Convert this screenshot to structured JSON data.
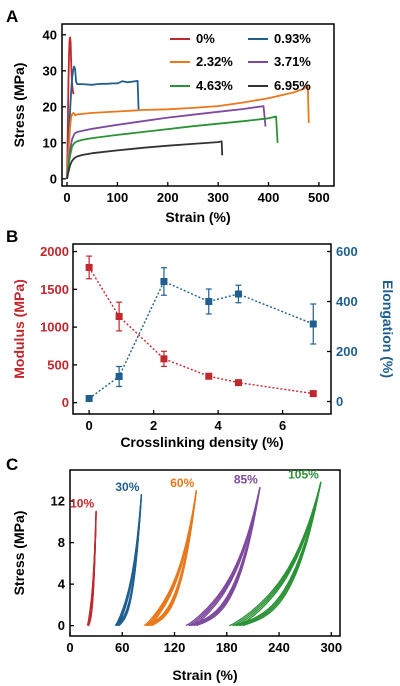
{
  "chart_data": [
    {
      "panel": "A",
      "type": "line",
      "xlabel": "Strain (%)",
      "ylabel": "Stress (MPa)",
      "xlim": [
        -10,
        530
      ],
      "ylim": [
        -2,
        43
      ],
      "xticks": [
        0,
        100,
        200,
        300,
        400,
        500
      ],
      "yticks": [
        0,
        10,
        20,
        30,
        40
      ],
      "legend_position": "top-right",
      "series": [
        {
          "name": "0%",
          "color": "#c0282d",
          "x": [
            0,
            1,
            2,
            3,
            4,
            5,
            6,
            7,
            8,
            9,
            10,
            11,
            12,
            13
          ],
          "y": [
            0,
            8,
            18,
            28,
            35,
            38.5,
            39.3,
            38,
            33,
            29,
            26.5,
            25,
            24,
            23.5
          ]
        },
        {
          "name": "0.93%",
          "color": "#1f5f8f",
          "x": [
            0,
            2,
            4,
            6,
            8,
            10,
            12,
            14,
            16,
            18,
            20,
            30,
            40,
            50,
            60,
            70,
            80,
            90,
            100,
            110,
            120,
            130,
            140,
            142
          ],
          "y": [
            0,
            6,
            13,
            19,
            24,
            28,
            30,
            31.2,
            30.5,
            27,
            26.3,
            26.3,
            26.2,
            26.1,
            26.3,
            26.4,
            26.4,
            26.5,
            26.5,
            27.1,
            26.8,
            27,
            27.2,
            19
          ]
        },
        {
          "name": "2.32%",
          "color": "#e8781c",
          "x": [
            0,
            2,
            4,
            6,
            8,
            10,
            13,
            16,
            20,
            50,
            100,
            150,
            200,
            250,
            300,
            350,
            400,
            450,
            470,
            478,
            480
          ],
          "y": [
            0,
            5,
            10,
            14.5,
            17,
            18,
            18.3,
            17.6,
            17.9,
            18.3,
            18.7,
            19.1,
            19.3,
            19.7,
            20.2,
            21.2,
            22.4,
            24,
            25,
            26,
            15.5
          ]
        },
        {
          "name": "3.71%",
          "color": "#7e4a9e",
          "x": [
            0,
            3,
            6,
            10,
            15,
            20,
            30,
            50,
            100,
            150,
            200,
            250,
            300,
            350,
            390,
            394
          ],
          "y": [
            0,
            4,
            8,
            11,
            12.6,
            13,
            13.3,
            13.9,
            15,
            16,
            17,
            17.8,
            18.6,
            19.4,
            20.2,
            14.5
          ]
        },
        {
          "name": "4.63%",
          "color": "#2b9236",
          "x": [
            0,
            3,
            6,
            10,
            15,
            20,
            30,
            50,
            100,
            150,
            200,
            250,
            300,
            350,
            400,
            415,
            418
          ],
          "y": [
            0,
            3.5,
            6.5,
            9,
            10,
            10.4,
            10.8,
            11.3,
            12.2,
            13,
            13.8,
            14.6,
            15.3,
            16,
            16.8,
            17.3,
            10
          ]
        },
        {
          "name": "6.95%",
          "color": "#333333",
          "x": [
            0,
            3,
            6,
            10,
            15,
            20,
            30,
            50,
            100,
            150,
            200,
            250,
            300,
            307,
            308
          ],
          "y": [
            0,
            2,
            3.8,
            5,
            5.8,
            6.2,
            6.6,
            7.1,
            7.9,
            8.6,
            9.2,
            9.7,
            10.2,
            10.4,
            6.5
          ]
        }
      ]
    },
    {
      "panel": "B",
      "type": "scatter",
      "xlabel": "Crosslinking density (%)",
      "ylabel_left": "Modulus (MPa)",
      "ylabel_right": "Elongation (%)",
      "xlim": [
        -0.5,
        7.5
      ],
      "ylim_left": [
        -150,
        2100
      ],
      "ylim_right": [
        -50,
        630
      ],
      "xticks": [
        0,
        2,
        4,
        6
      ],
      "yticks_left": [
        0,
        500,
        1000,
        1500,
        2000
      ],
      "yticks_right": [
        0,
        200,
        400,
        600
      ],
      "series": [
        {
          "name": "Modulus",
          "axis": "left",
          "color": "#c0282d",
          "x": [
            0,
            0.93,
            2.32,
            3.71,
            4.63,
            6.95
          ],
          "y": [
            1790,
            1140,
            580,
            350,
            265,
            120
          ],
          "err": [
            150,
            190,
            100,
            30,
            25,
            20
          ]
        },
        {
          "name": "Elongation",
          "axis": "right",
          "color": "#1f5f8f",
          "x": [
            0,
            0.93,
            2.32,
            3.71,
            4.63,
            6.95
          ],
          "y": [
            12,
            100,
            480,
            400,
            430,
            310
          ],
          "err": [
            5,
            40,
            55,
            50,
            35,
            80
          ]
        }
      ]
    },
    {
      "panel": "C",
      "type": "line",
      "xlabel": "Strain (%)",
      "ylabel": "Stress (MPa)",
      "xlim": [
        0,
        310
      ],
      "ylim": [
        -1,
        15
      ],
      "xticks": [
        0,
        60,
        120,
        180,
        240,
        300
      ],
      "yticks": [
        0,
        4,
        8,
        12
      ],
      "series": [
        {
          "label": "10%",
          "color": "#c0282d",
          "x0": 20,
          "strain": 10,
          "peak": 11
        },
        {
          "label": "30%",
          "color": "#1f5f8f",
          "x0": 52,
          "strain": 30,
          "peak": 12.6
        },
        {
          "label": "60%",
          "color": "#e8781c",
          "x0": 85,
          "strain": 60,
          "peak": 13
        },
        {
          "label": "85%",
          "color": "#7e4a9e",
          "x0": 133,
          "strain": 85,
          "peak": 13.3
        },
        {
          "label": "105%",
          "color": "#2b9236",
          "x0": 183,
          "strain": 105,
          "peak": 13.8
        }
      ]
    }
  ]
}
